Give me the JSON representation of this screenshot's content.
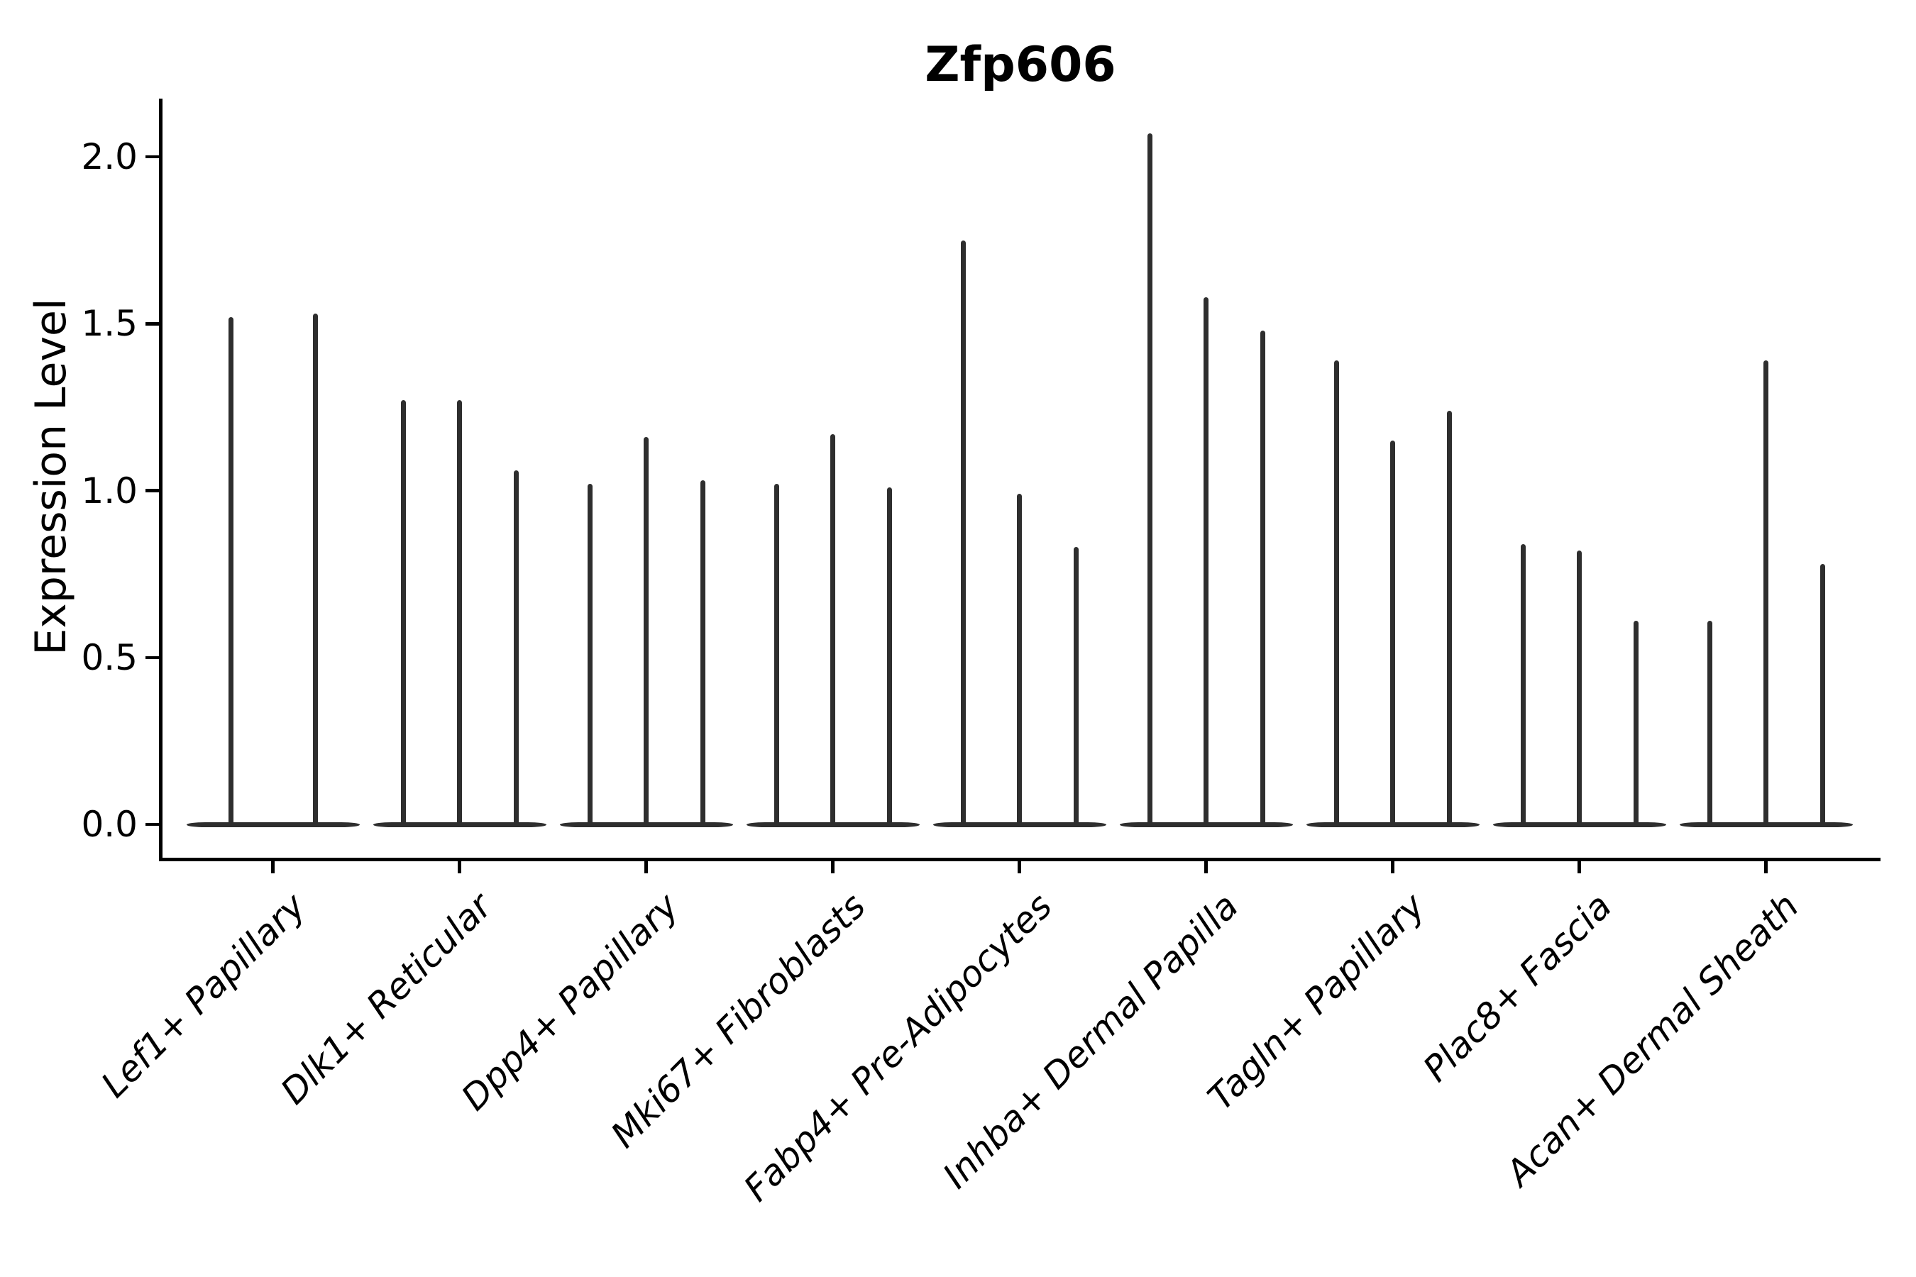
{
  "figure": {
    "background": "#ffffff",
    "axis_color": "#000000",
    "violin_color": "#2e2e2e"
  },
  "chart_data": {
    "type": "violin",
    "title": "Zfp606",
    "xlabel": "",
    "ylabel": "Expression Level",
    "ylim": [
      -0.1,
      2.17
    ],
    "yticks": [
      0.0,
      0.5,
      1.0,
      1.5,
      2.0
    ],
    "ytick_labels": [
      "0.0",
      "0.5",
      "1.0",
      "1.5",
      "2.0"
    ],
    "grid": false,
    "legend_position": "none",
    "categories": [
      "Lef1+ Papillary",
      "Dlk1+ Reticular",
      "Dpp4+ Papillary",
      "Mki67+ Fibroblasts",
      "Fabp4+ Pre-Adipocytes",
      "Inhba+ Dermal Papilla",
      "Tagln+ Papillary",
      "Plac8+ Fascia",
      "Acan+ Dermal Sheath"
    ],
    "series": [
      {
        "category": "Lef1+ Papillary",
        "violin_max_values": [
          1.52,
          1.53
        ]
      },
      {
        "category": "Dlk1+ Reticular",
        "violin_max_values": [
          1.27,
          1.27,
          1.06
        ]
      },
      {
        "category": "Dpp4+ Papillary",
        "violin_max_values": [
          1.02,
          1.16,
          1.03
        ]
      },
      {
        "category": "Mki67+ Fibroblasts",
        "violin_max_values": [
          1.02,
          1.17,
          1.01
        ]
      },
      {
        "category": "Fabp4+ Pre-Adipocytes",
        "violin_max_values": [
          1.75,
          0.99,
          0.83
        ]
      },
      {
        "category": "Inhba+ Dermal Papilla",
        "violin_max_values": [
          2.07,
          1.58,
          1.48
        ]
      },
      {
        "category": "Tagln+ Papillary",
        "violin_max_values": [
          1.39,
          1.15,
          1.24
        ]
      },
      {
        "category": "Plac8+ Fascia",
        "violin_max_values": [
          0.84,
          0.82,
          0.61
        ]
      },
      {
        "category": "Acan+ Dermal Sheath",
        "violin_max_values": [
          0.61,
          1.39,
          0.78
        ]
      }
    ],
    "shape_note": "Each violin is collapsed to a wide flat base at expression 0 with a thin vertical spike reaching its maximum expression value"
  }
}
